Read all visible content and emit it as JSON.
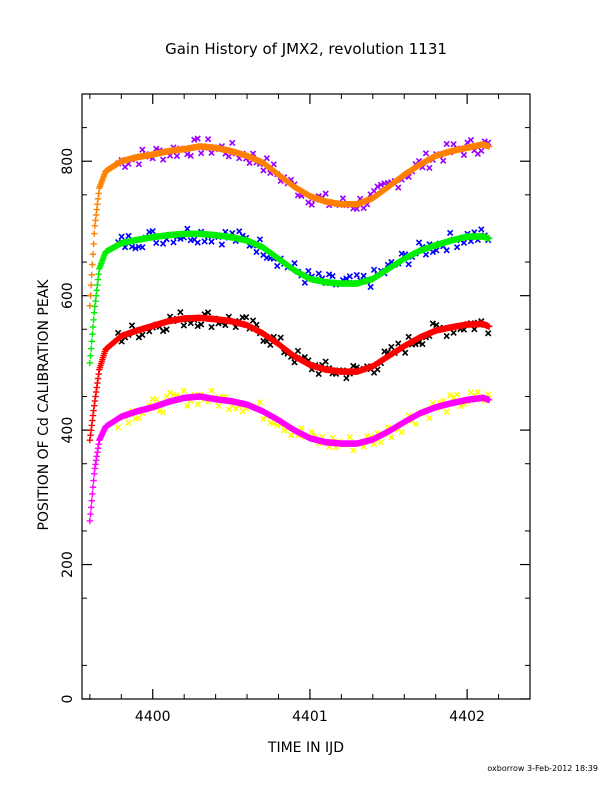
{
  "chart_data": {
    "type": "scatter",
    "title": "Gain History of JMX2, revolution 1131",
    "xlabel": "TIME IN IJD",
    "ylabel": "POSITION OF Cd CALIBRATION PEAK",
    "xlim": [
      4399.55,
      4402.4
    ],
    "ylim": [
      0,
      900
    ],
    "xticks": [
      4400,
      4401,
      4402
    ],
    "xtick_labels": [
      "4400",
      "4401",
      "4402"
    ],
    "yticks": [
      0,
      200,
      400,
      600,
      800
    ],
    "ytick_labels": [
      "0",
      "200",
      "400",
      "600",
      "800"
    ],
    "grid": false,
    "footer": "oxborrow  3-Feb-2012 18:39",
    "series": [
      {
        "color": "#ff8000",
        "measured_color": "#9900ff",
        "x": [
          4399.6,
          4399.63,
          4399.66,
          4399.7,
          4399.8,
          4399.9,
          4400.0,
          4400.1,
          4400.2,
          4400.3,
          4400.4,
          4400.5,
          4400.6,
          4400.7,
          4400.8,
          4400.9,
          4401.0,
          4401.1,
          4401.2,
          4401.3,
          4401.4,
          4401.5,
          4401.6,
          4401.7,
          4401.8,
          4401.9,
          4402.0,
          4402.1,
          4402.14
        ],
        "y": [
          585,
          700,
          760,
          785,
          800,
          806,
          810,
          815,
          818,
          822,
          820,
          815,
          808,
          798,
          780,
          762,
          748,
          740,
          736,
          736,
          745,
          762,
          780,
          795,
          808,
          815,
          820,
          825,
          822
        ]
      },
      {
        "color": "#00ee00",
        "measured_color": "#0000ff",
        "x": [
          4399.6,
          4399.63,
          4399.66,
          4399.7,
          4399.8,
          4399.9,
          4400.0,
          4400.1,
          4400.2,
          4400.3,
          4400.4,
          4400.5,
          4400.6,
          4400.7,
          4400.8,
          4400.9,
          4401.0,
          4401.1,
          4401.2,
          4401.3,
          4401.4,
          4401.5,
          4401.6,
          4401.7,
          4401.8,
          4401.9,
          4402.0,
          4402.1,
          4402.14
        ],
        "y": [
          500,
          580,
          640,
          665,
          678,
          683,
          687,
          690,
          692,
          692,
          690,
          687,
          682,
          672,
          655,
          638,
          625,
          620,
          618,
          618,
          625,
          640,
          655,
          667,
          675,
          682,
          688,
          688,
          685
        ]
      },
      {
        "color": "#ff0000",
        "measured_color": "#000000",
        "x": [
          4399.6,
          4399.63,
          4399.66,
          4399.7,
          4399.8,
          4399.9,
          4400.0,
          4400.1,
          4400.2,
          4400.3,
          4400.4,
          4400.5,
          4400.6,
          4400.7,
          4400.8,
          4400.9,
          4401.0,
          4401.1,
          4401.2,
          4401.3,
          4401.4,
          4401.5,
          4401.6,
          4401.7,
          4401.8,
          4401.9,
          4402.0,
          4402.1,
          4402.14
        ],
        "y": [
          385,
          440,
          490,
          520,
          540,
          548,
          555,
          562,
          566,
          567,
          565,
          562,
          556,
          544,
          528,
          510,
          497,
          490,
          487,
          487,
          495,
          510,
          525,
          538,
          548,
          553,
          557,
          558,
          554
        ]
      },
      {
        "color": "#ff00ff",
        "measured_color": "#ffff00",
        "x": [
          4399.6,
          4399.63,
          4399.66,
          4399.7,
          4399.8,
          4399.9,
          4400.0,
          4400.1,
          4400.2,
          4400.3,
          4400.4,
          4400.5,
          4400.6,
          4400.7,
          4400.8,
          4400.9,
          4401.0,
          4401.1,
          4401.2,
          4401.3,
          4401.4,
          4401.5,
          4401.6,
          4401.7,
          4401.8,
          4401.9,
          4402.0,
          4402.1,
          4402.14
        ],
        "y": [
          265,
          340,
          385,
          405,
          420,
          428,
          434,
          442,
          448,
          450,
          446,
          443,
          438,
          428,
          415,
          400,
          388,
          382,
          380,
          380,
          386,
          398,
          412,
          425,
          434,
          440,
          445,
          448,
          445
        ]
      }
    ]
  }
}
